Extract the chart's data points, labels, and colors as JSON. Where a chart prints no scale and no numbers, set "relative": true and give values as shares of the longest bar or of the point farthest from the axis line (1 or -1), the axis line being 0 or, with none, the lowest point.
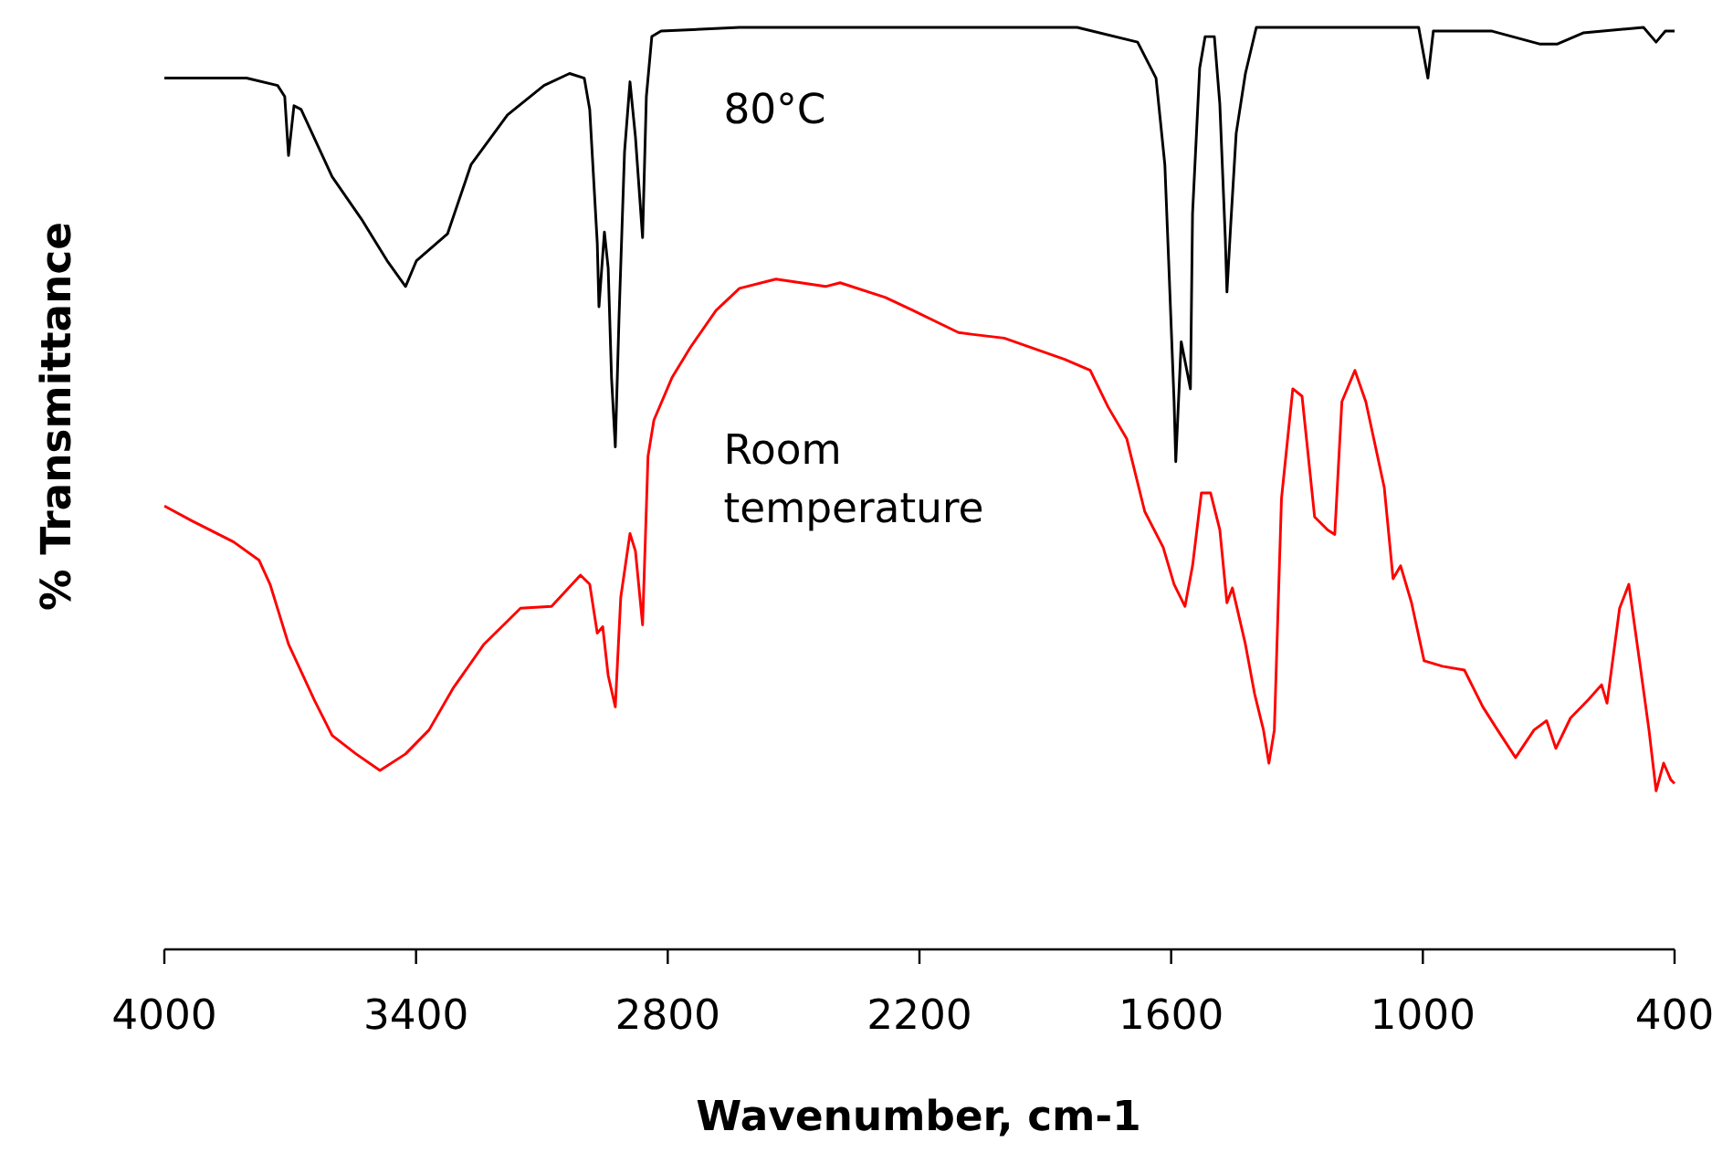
{
  "chart_data": {
    "type": "line",
    "xlabel": "Wavenumber, cm-1",
    "ylabel": "% Transmittance",
    "relative": true,
    "xlim": [
      4000,
      400
    ],
    "xticks": [
      4000,
      3400,
      2800,
      2200,
      1600,
      1000,
      400
    ],
    "series": [
      {
        "name": "80°C",
        "color": "#000000",
        "x": [
          4000,
          3804,
          3730,
          3713,
          3704,
          3691,
          3674,
          3600,
          3530,
          3469,
          3425,
          3399,
          3325,
          3269,
          3182,
          3095,
          3034,
          2999,
          2986,
          2968,
          2964,
          2951,
          2942,
          2934,
          2925,
          2916,
          2903,
          2890,
          2877,
          2860,
          2851,
          2838,
          2816,
          2629,
          1824,
          1680,
          1636,
          1615,
          1606,
          1593,
          1589,
          1576,
          1554,
          1549,
          1532,
          1519,
          1497,
          1484,
          1471,
          1467,
          1458,
          1445,
          1423,
          1397,
          1010,
          988,
          975,
          835,
          722,
          679,
          618,
          474,
          444,
          422,
          400
        ],
        "values": [
          0.945,
          0.945,
          0.937,
          0.925,
          0.861,
          0.915,
          0.911,
          0.838,
          0.792,
          0.747,
          0.719,
          0.747,
          0.776,
          0.851,
          0.905,
          0.937,
          0.95,
          0.945,
          0.911,
          0.766,
          0.697,
          0.778,
          0.739,
          0.62,
          0.545,
          0.687,
          0.865,
          0.941,
          0.881,
          0.772,
          0.925,
          0.99,
          0.996,
          1,
          1,
          0.984,
          0.945,
          0.851,
          0.747,
          0.594,
          0.529,
          0.659,
          0.608,
          0.798,
          0.956,
          0.99,
          0.99,
          0.917,
          0.772,
          0.713,
          0.786,
          0.885,
          0.95,
          1,
          1,
          0.945,
          0.996,
          0.996,
          0.982,
          0.982,
          0.994,
          1,
          0.984,
          0.996,
          0.996
        ]
      },
      {
        "name": "Room temperature",
        "color": "#ff0000",
        "x": [
          4000,
          3935,
          3835,
          3774,
          3748,
          3704,
          3643,
          3600,
          3543,
          3486,
          3425,
          3369,
          3312,
          3238,
          3151,
          3077,
          3008,
          2986,
          2968,
          2955,
          2942,
          2925,
          2912,
          2890,
          2877,
          2860,
          2847,
          2833,
          2790,
          2746,
          2685,
          2629,
          2542,
          2424,
          2389,
          2281,
          2215,
          2107,
          2072,
          1998,
          1854,
          1793,
          1750,
          1706,
          1663,
          1619,
          1593,
          1567,
          1549,
          1528,
          1506,
          1484,
          1467,
          1454,
          1423,
          1401,
          1380,
          1367,
          1354,
          1337,
          1310,
          1288,
          1258,
          1227,
          1210,
          1193,
          1162,
          1136,
          1092,
          1071,
          1053,
          1027,
          997,
          953,
          901,
          857,
          822,
          779,
          735,
          705,
          683,
          648,
          605,
          574,
          561,
          531,
          509,
          483,
          461,
          444,
          426,
          409,
          400
        ],
        "values": [
          0.481,
          0.465,
          0.442,
          0.422,
          0.396,
          0.331,
          0.271,
          0.232,
          0.212,
          0.194,
          0.212,
          0.238,
          0.283,
          0.331,
          0.37,
          0.372,
          0.406,
          0.396,
          0.343,
          0.35,
          0.297,
          0.263,
          0.382,
          0.451,
          0.432,
          0.352,
          0.535,
          0.574,
          0.62,
          0.653,
          0.693,
          0.717,
          0.727,
          0.719,
          0.723,
          0.707,
          0.693,
          0.669,
          0.667,
          0.663,
          0.64,
          0.628,
          0.588,
          0.554,
          0.475,
          0.436,
          0.396,
          0.372,
          0.416,
          0.495,
          0.495,
          0.455,
          0.376,
          0.392,
          0.331,
          0.277,
          0.238,
          0.202,
          0.238,
          0.489,
          0.608,
          0.6,
          0.469,
          0.455,
          0.45,
          0.594,
          0.628,
          0.594,
          0.501,
          0.402,
          0.416,
          0.376,
          0.313,
          0.307,
          0.303,
          0.263,
          0.238,
          0.208,
          0.238,
          0.248,
          0.218,
          0.251,
          0.271,
          0.287,
          0.267,
          0.37,
          0.396,
          0.311,
          0.238,
          0.172,
          0.202,
          0.184,
          0.18
        ]
      }
    ]
  }
}
